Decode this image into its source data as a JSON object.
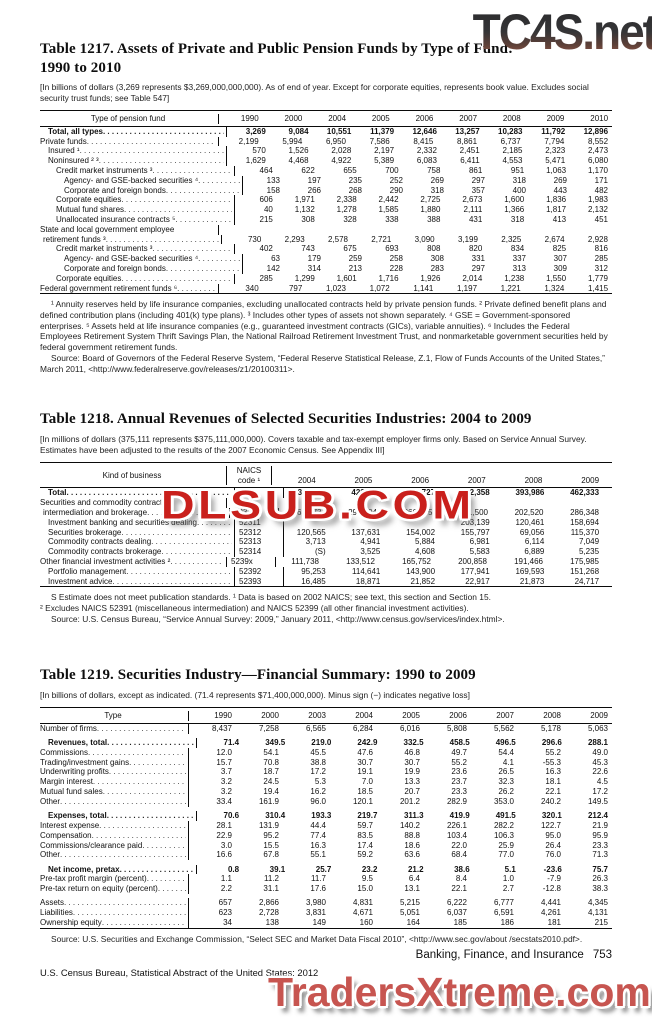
{
  "page": {
    "footer_left": "U.S. Census Bureau, Statistical Abstract of the United States: 2012",
    "footer_section": "Banking, Finance, and Insurance",
    "footer_page_number": "753"
  },
  "watermarks": {
    "top": "TC4S.net",
    "middle": "DLSUB.COM",
    "bottom": "TradersXtreme.com",
    "colors": {
      "top_dark": "#333335",
      "top_red": "#9a5a49",
      "middle_red": "#c9201c",
      "bottom_rose": "#c75550"
    }
  },
  "t1217": {
    "title1": "Table 1217. Assets of Private and Public Pension Funds by Type of Fund:",
    "title2": "1990 to 2010",
    "note": "[In billions of dollars (3,269 represents $3,269,000,000,000). As of end of year. Except for corporate equities, represents book value. Excludes social security trust funds; see Table 547]",
    "head_label": "Type of pension fund",
    "years": [
      "1990",
      "2000",
      "2004",
      "2005",
      "2006",
      "2007",
      "2008",
      "2009",
      "2010"
    ],
    "rows": [
      {
        "label": "Total, all types",
        "indent": 8,
        "bold": true,
        "cells": [
          "3,269",
          "9,084",
          "10,551",
          "11,379",
          "12,646",
          "13,257",
          "10,283",
          "11,792",
          "12,896"
        ]
      },
      {
        "label": "Private funds",
        "indent": 0,
        "cells": [
          "2,199",
          "5,994",
          "6,950",
          "7,586",
          "8,415",
          "8,861",
          "6,737",
          "7,794",
          "8,552"
        ]
      },
      {
        "label": "Insured ¹",
        "indent": 8,
        "cells": [
          "570",
          "1,526",
          "2,028",
          "2,197",
          "2,332",
          "2,451",
          "2,185",
          "2,323",
          "2,473"
        ]
      },
      {
        "label": "Noninsured ² ³",
        "indent": 8,
        "cells": [
          "1,629",
          "4,468",
          "4,922",
          "5,389",
          "6,083",
          "6,411",
          "4,553",
          "5,471",
          "6,080"
        ]
      },
      {
        "label": "Credit market instruments ³",
        "indent": 16,
        "cells": [
          "464",
          "622",
          "655",
          "700",
          "758",
          "861",
          "951",
          "1,063",
          "1,170"
        ]
      },
      {
        "label": "Agency- and GSE-backed securities ⁴",
        "indent": 24,
        "cells": [
          "133",
          "197",
          "235",
          "252",
          "269",
          "297",
          "318",
          "269",
          "171"
        ]
      },
      {
        "label": "Corporate and foreign bonds",
        "indent": 24,
        "cells": [
          "158",
          "266",
          "268",
          "290",
          "318",
          "357",
          "400",
          "443",
          "482"
        ]
      },
      {
        "label": "Corporate equities",
        "indent": 16,
        "cells": [
          "606",
          "1,971",
          "2,338",
          "2,442",
          "2,725",
          "2,673",
          "1,600",
          "1,836",
          "1,983"
        ]
      },
      {
        "label": "Mutual fund shares",
        "indent": 16,
        "cells": [
          "40",
          "1,132",
          "1,278",
          "1,585",
          "1,880",
          "2,111",
          "1,366",
          "1,817",
          "2,132"
        ]
      },
      {
        "label": "Unallocated insurance contracts ⁵",
        "indent": 16,
        "cells": [
          "215",
          "308",
          "328",
          "338",
          "388",
          "431",
          "318",
          "413",
          "451"
        ]
      },
      {
        "label": "State and local government employee",
        "indent": 0,
        "cells": null
      },
      {
        "label": "retirement funds ³",
        "indent": 3,
        "cells": [
          "730",
          "2,293",
          "2,578",
          "2,721",
          "3,090",
          "3,199",
          "2,325",
          "2,674",
          "2,928"
        ]
      },
      {
        "label": "Credit market instruments ³",
        "indent": 16,
        "cells": [
          "402",
          "743",
          "675",
          "693",
          "808",
          "820",
          "834",
          "825",
          "816"
        ]
      },
      {
        "label": "Agency- and GSE-backed securities ⁴",
        "indent": 24,
        "cells": [
          "63",
          "179",
          "259",
          "258",
          "308",
          "331",
          "337",
          "307",
          "285"
        ]
      },
      {
        "label": "Corporate and foreign bonds",
        "indent": 24,
        "cells": [
          "142",
          "314",
          "213",
          "228",
          "283",
          "297",
          "313",
          "309",
          "312"
        ]
      },
      {
        "label": "Corporate equities",
        "indent": 16,
        "cells": [
          "285",
          "1,299",
          "1,601",
          "1,716",
          "1,926",
          "2,014",
          "1,238",
          "1,550",
          "1,779"
        ]
      },
      {
        "label": "Federal government retirement funds ⁶",
        "indent": 0,
        "cells": [
          "340",
          "797",
          "1,023",
          "1,072",
          "1,141",
          "1,197",
          "1,221",
          "1,324",
          "1,415"
        ]
      }
    ],
    "footnotes": [
      {
        "indent": true,
        "text": "¹ Annuity reserves held by life insurance companies, excluding unallocated contracts held by private pension funds. ² Private defined benefit plans and defined contribution plans (including 401(k) type plans). ³ Includes other types of assets not shown separately. ⁴ GSE = Government-sponsored enterprises. ⁵ Assets held at life insurance companies (e.g., guaranteed investment contracts (GICs), variable annuities). ⁶ Includes the Federal Employees Retirement System Thrift Savings Plan, the National Railroad Retirement Investment Trust, and nonmarketable government securities held by federal government retirement funds."
      },
      {
        "indent": true,
        "text": "Source: Board of Governors of the Federal Reserve System, “Federal Reserve Statistical Release, Z.1, Flow of Funds Accounts of the United States,” March 2011, <http://www.federalreserve.gov/releases/z1/20100311>."
      }
    ]
  },
  "t1218": {
    "title1": "Table 1218. Annual Revenues of Selected Securities Industries: 2004 to 2009",
    "note": "[In millions of dollars (375,111 represents $375,111,000,000). Covers taxable and tax-exempt employer firms only. Based on Service Annual Survey. Estimates have been adjusted to the results of the 2007 Economic Census. See Appendix III]",
    "head_label": "Kind of business",
    "code_head": [
      "NAICS",
      "code ¹"
    ],
    "years": [
      "2004",
      "2005",
      "2006",
      "2007",
      "2008",
      "2009"
    ],
    "rows": [
      {
        "label": "Total",
        "indent": 8,
        "bold": true,
        "code": "523x",
        "cells": [
          "375,111",
          "429,316",
          "532,727",
          "572,358",
          "393,986",
          "462,333"
        ]
      },
      {
        "label": "Securities and commodity contracts",
        "indent": 0,
        "cells": null
      },
      {
        "label": "intermediation and brokerage",
        "indent": 3,
        "code": "5231x",
        "cells": [
          "263,373",
          "295,804",
          "366,975",
          "371,500",
          "202,520",
          "286,348"
        ]
      },
      {
        "label": "Investment banking and securities dealing",
        "indent": 8,
        "code": "52311",
        "cells": [
          "",
          "",
          "",
          "203,139",
          "120,461",
          "158,694"
        ]
      },
      {
        "label": "Securities brokerage",
        "indent": 8,
        "code": "52312",
        "cells": [
          "120,565",
          "137,631",
          "154,002",
          "155,797",
          "69,056",
          "115,370"
        ]
      },
      {
        "label": "Commodity contracts dealing",
        "indent": 8,
        "code": "52313",
        "cells": [
          "3,713",
          "4,941",
          "5,884",
          "6,981",
          "6,114",
          "7,049"
        ]
      },
      {
        "label": "Commodity contracts brokerage",
        "indent": 8,
        "code": "52314",
        "cells": [
          "(S)",
          "3,525",
          "4,608",
          "5,583",
          "6,889",
          "5,235"
        ]
      },
      {
        "label": "Other financial investment activities ²",
        "indent": 0,
        "code": "5239x",
        "cells": [
          "111,738",
          "133,512",
          "165,752",
          "200,858",
          "191,466",
          "175,985"
        ]
      },
      {
        "label": "Portfolio management",
        "indent": 8,
        "code": "52392",
        "cells": [
          "95,253",
          "114,641",
          "143,900",
          "177,941",
          "169,593",
          "151,268"
        ]
      },
      {
        "label": "Investment advice",
        "indent": 8,
        "code": "52393",
        "cells": [
          "16,485",
          "18,871",
          "21,852",
          "22,917",
          "21,873",
          "24,717"
        ]
      }
    ],
    "footnotes": [
      {
        "indent": true,
        "text": "S Estimate does not meet publication standards. ¹ Data is based on 2002 NAICS; see text, this section and Section 15."
      },
      {
        "indent": false,
        "text": "² Excludes NAICS 52391 (miscellaneous intermediation) and NAICS 52399 (all other financial investment activities)."
      },
      {
        "indent": true,
        "text": "Source: U.S. Census Bureau, “Service Annual Survey: 2009,” January 2011, <http://www.census.gov/services/index.html>."
      }
    ]
  },
  "t1219": {
    "title1": "Table 1219. Securities Industry—Financial Summary: 1990 to 2009",
    "note": "[In billions of dollars, except as indicated. (71.4 represents $71,400,000,000). Minus sign (−) indicates negative loss]",
    "head_label": "Type",
    "years": [
      "1990",
      "2000",
      "2003",
      "2004",
      "2005",
      "2006",
      "2007",
      "2008",
      "2009"
    ],
    "rows": [
      {
        "label": "Number of firms",
        "indent": 0,
        "cells": [
          "8,437",
          "7,258",
          "6,565",
          "6,284",
          "6,016",
          "5,808",
          "5,562",
          "5,178",
          "5,063"
        ]
      },
      {
        "label": "Revenues, total",
        "indent": 8,
        "bold": true,
        "gap": true,
        "cells": [
          "71.4",
          "349.5",
          "219.0",
          "242.9",
          "332.5",
          "458.5",
          "496.5",
          "296.6",
          "288.1"
        ]
      },
      {
        "label": "Commissions",
        "indent": 0,
        "cells": [
          "12.0",
          "54.1",
          "45.5",
          "47.6",
          "46.8",
          "49.7",
          "54.4",
          "55.2",
          "49.0"
        ]
      },
      {
        "label": "Trading/investment gains",
        "indent": 0,
        "cells": [
          "15.7",
          "70.8",
          "38.8",
          "30.7",
          "30.7",
          "55.2",
          "4.1",
          "-55.3",
          "45.3"
        ]
      },
      {
        "label": "Underwriting profits",
        "indent": 0,
        "cells": [
          "3.7",
          "18.7",
          "17.2",
          "19.1",
          "19.9",
          "23.6",
          "26.5",
          "16.3",
          "22.6"
        ]
      },
      {
        "label": "Margin interest",
        "indent": 0,
        "cells": [
          "3.2",
          "24.5",
          "5.3",
          "7.0",
          "13.3",
          "23.7",
          "32.3",
          "18.1",
          "4.5"
        ]
      },
      {
        "label": "Mutual fund sales",
        "indent": 0,
        "cells": [
          "3.2",
          "19.4",
          "16.2",
          "18.5",
          "20.7",
          "23.3",
          "26.2",
          "22.1",
          "17.2"
        ]
      },
      {
        "label": "Other",
        "indent": 0,
        "cells": [
          "33.4",
          "161.9",
          "96.0",
          "120.1",
          "201.2",
          "282.9",
          "353.0",
          "240.2",
          "149.5"
        ]
      },
      {
        "label": "Expenses, total",
        "indent": 8,
        "bold": true,
        "gap": true,
        "cells": [
          "70.6",
          "310.4",
          "193.3",
          "219.7",
          "311.3",
          "419.9",
          "491.5",
          "320.1",
          "212.4"
        ]
      },
      {
        "label": "Interest expense",
        "indent": 0,
        "cells": [
          "28.1",
          "131.9",
          "44.4",
          "59.7",
          "140.2",
          "226.1",
          "282.2",
          "122.7",
          "21.9"
        ]
      },
      {
        "label": "Compensation",
        "indent": 0,
        "cells": [
          "22.9",
          "95.2",
          "77.4",
          "83.5",
          "88.8",
          "103.4",
          "106.3",
          "95.0",
          "95.9"
        ]
      },
      {
        "label": "Commissions/clearance paid",
        "indent": 0,
        "cells": [
          "3.0",
          "15.5",
          "16.3",
          "17.4",
          "18.6",
          "22.0",
          "25.9",
          "26.4",
          "23.3"
        ]
      },
      {
        "label": "Other",
        "indent": 0,
        "cells": [
          "16.6",
          "67.8",
          "55.1",
          "59.2",
          "63.6",
          "68.4",
          "77.0",
          "76.0",
          "71.3"
        ]
      },
      {
        "label": "Net income, pretax",
        "indent": 8,
        "bold": true,
        "gap": true,
        "cells": [
          "0.8",
          "39.1",
          "25.7",
          "23.2",
          "21.2",
          "38.6",
          "5.1",
          "-23.6",
          "75.7"
        ]
      },
      {
        "label": "Pre-tax profit margin (percent)",
        "indent": 0,
        "cells": [
          "1.1",
          "11.2",
          "11.7",
          "9.5",
          "6.4",
          "8.4",
          "1.0",
          "-7.9",
          "26.3"
        ]
      },
      {
        "label": "Pre-tax return on equity (percent)",
        "indent": 0,
        "cells": [
          "2.2",
          "31.1",
          "17.6",
          "15.0",
          "13.1",
          "22.1",
          "2.7",
          "-12.8",
          "38.3"
        ]
      },
      {
        "label": "Assets",
        "indent": 0,
        "gap": true,
        "cells": [
          "657",
          "2,866",
          "3,980",
          "4,831",
          "5,215",
          "6,222",
          "6,777",
          "4,441",
          "4,345"
        ]
      },
      {
        "label": "Liabilities",
        "indent": 0,
        "cells": [
          "623",
          "2,728",
          "3,831",
          "4,671",
          "5,051",
          "6,037",
          "6,591",
          "4,261",
          "4,131"
        ]
      },
      {
        "label": "Ownership equity",
        "indent": 0,
        "cells": [
          "34",
          "138",
          "149",
          "160",
          "164",
          "185",
          "186",
          "181",
          "215"
        ]
      }
    ],
    "footnotes": [
      {
        "indent": true,
        "text": "Source: U.S. Securities and Exchange Commission, “Select SEC and Market Data Fiscal 2010”, <http://www.sec.gov/about /secstats2010.pdf>."
      }
    ]
  }
}
